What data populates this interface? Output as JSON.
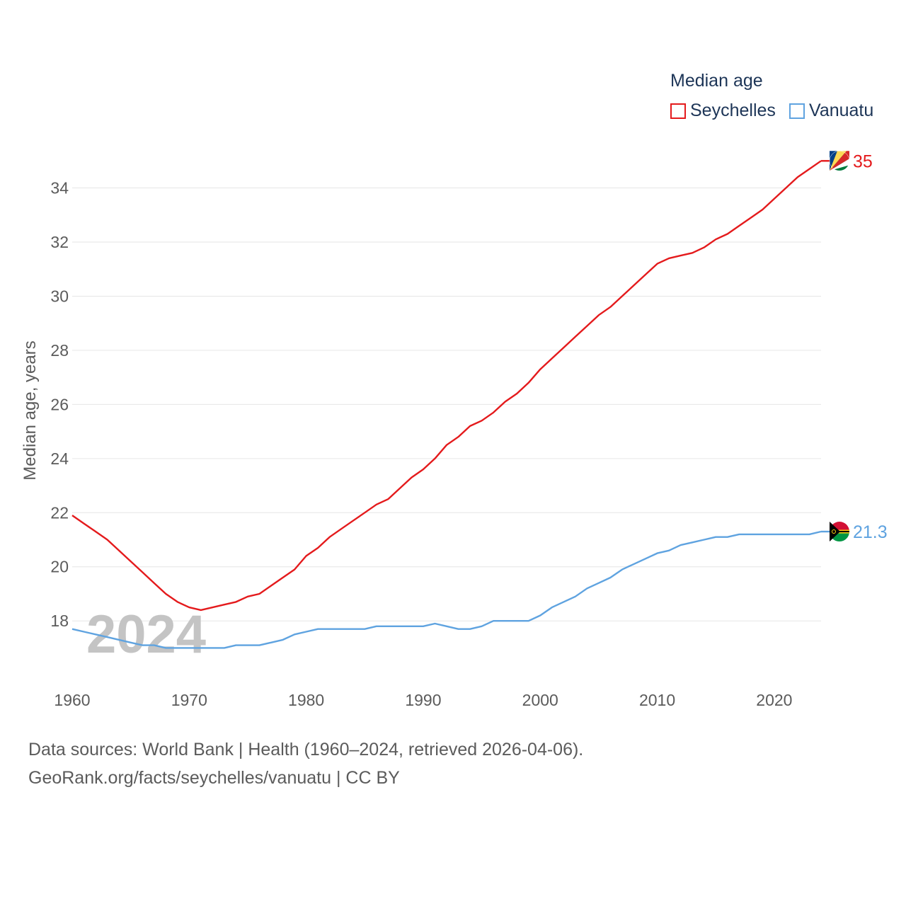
{
  "legend": {
    "title": "Median age",
    "items": [
      {
        "label": "Seychelles",
        "color": "#e41a1c"
      },
      {
        "label": "Vanuatu",
        "color": "#5fa3e0"
      }
    ]
  },
  "footer": {
    "line1": "Data sources: World Bank | Health (1960–2024, retrieved 2026-04-06).",
    "line2": "GeoRank.org/facts/seychelles/vanuatu | CC BY"
  },
  "chart_data": {
    "type": "line",
    "title": "",
    "xlabel": "",
    "ylabel": "Median age, years",
    "year_watermark": "2024",
    "xlim": [
      1960,
      2024
    ],
    "ylim": [
      16.2,
      35.4
    ],
    "x_ticks": [
      1960,
      1970,
      1980,
      1990,
      2000,
      2010,
      2020
    ],
    "y_ticks": [
      18,
      20,
      22,
      24,
      26,
      28,
      30,
      32,
      34
    ],
    "grid": true,
    "x": [
      1960,
      1961,
      1962,
      1963,
      1964,
      1965,
      1966,
      1967,
      1968,
      1969,
      1970,
      1971,
      1972,
      1973,
      1974,
      1975,
      1976,
      1977,
      1978,
      1979,
      1980,
      1981,
      1982,
      1983,
      1984,
      1985,
      1986,
      1987,
      1988,
      1989,
      1990,
      1991,
      1992,
      1993,
      1994,
      1995,
      1996,
      1997,
      1998,
      1999,
      2000,
      2001,
      2002,
      2003,
      2004,
      2005,
      2006,
      2007,
      2008,
      2009,
      2010,
      2011,
      2012,
      2013,
      2014,
      2015,
      2016,
      2017,
      2018,
      2019,
      2020,
      2021,
      2022,
      2023,
      2024
    ],
    "series": [
      {
        "name": "Seychelles",
        "color": "#e41a1c",
        "end_label": "35",
        "values": [
          21.9,
          21.6,
          21.3,
          21.0,
          20.6,
          20.2,
          19.8,
          19.4,
          19.0,
          18.7,
          18.5,
          18.4,
          18.5,
          18.6,
          18.7,
          18.9,
          19.0,
          19.3,
          19.6,
          19.9,
          20.4,
          20.7,
          21.1,
          21.4,
          21.7,
          22.0,
          22.3,
          22.5,
          22.9,
          23.3,
          23.6,
          24.0,
          24.5,
          24.8,
          25.2,
          25.4,
          25.7,
          26.1,
          26.4,
          26.8,
          27.3,
          27.7,
          28.1,
          28.5,
          28.9,
          29.3,
          29.6,
          30.0,
          30.4,
          30.8,
          31.2,
          31.4,
          31.5,
          31.6,
          31.8,
          32.1,
          32.3,
          32.6,
          32.9,
          33.2,
          33.6,
          34.0,
          34.4,
          34.7,
          35.0
        ]
      },
      {
        "name": "Vanuatu",
        "color": "#5fa3e0",
        "end_label": "21.3",
        "values": [
          17.7,
          17.6,
          17.5,
          17.4,
          17.3,
          17.2,
          17.1,
          17.1,
          17.0,
          17.0,
          17.0,
          17.0,
          17.0,
          17.0,
          17.1,
          17.1,
          17.1,
          17.2,
          17.3,
          17.5,
          17.6,
          17.7,
          17.7,
          17.7,
          17.7,
          17.7,
          17.8,
          17.8,
          17.8,
          17.8,
          17.8,
          17.9,
          17.8,
          17.7,
          17.7,
          17.8,
          18.0,
          18.0,
          18.0,
          18.0,
          18.2,
          18.5,
          18.7,
          18.9,
          19.2,
          19.4,
          19.6,
          19.9,
          20.1,
          20.3,
          20.5,
          20.6,
          20.8,
          20.9,
          21.0,
          21.1,
          21.1,
          21.2,
          21.2,
          21.2,
          21.2,
          21.2,
          21.2,
          21.2,
          21.3
        ]
      }
    ]
  }
}
